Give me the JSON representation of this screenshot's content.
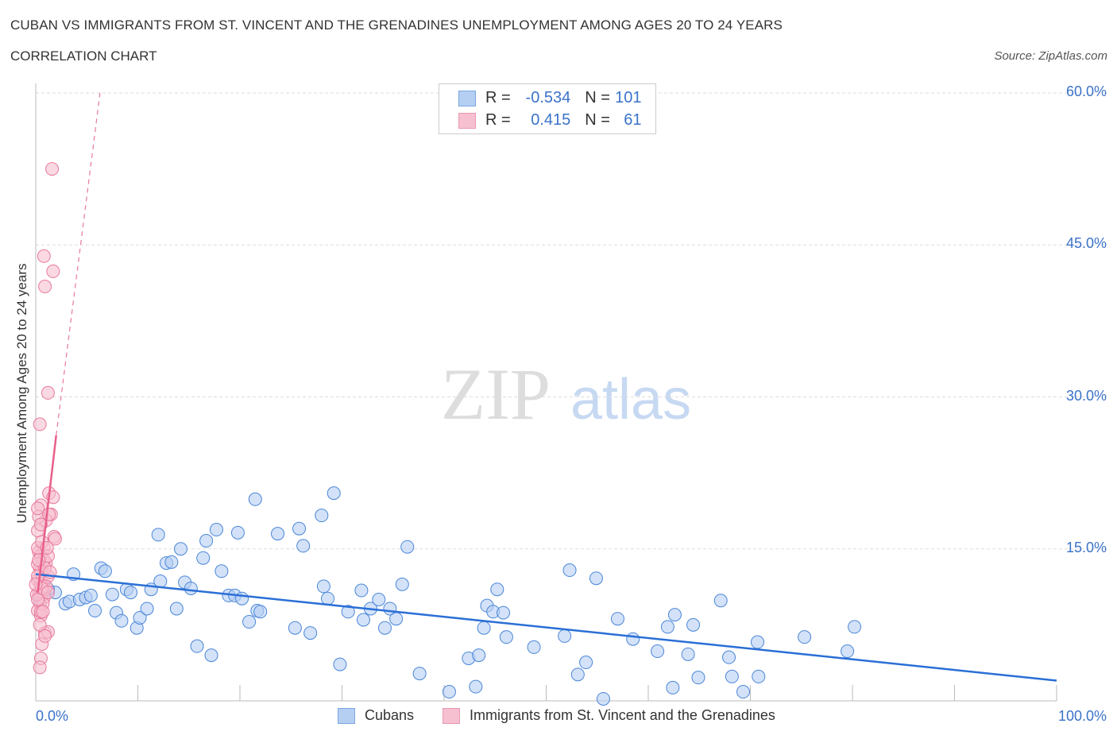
{
  "title": "CUBAN VS IMMIGRANTS FROM ST. VINCENT AND THE GRENADINES UNEMPLOYMENT AMONG AGES 20 TO 24 YEARS",
  "subtitle": "CORRELATION CHART",
  "source": "Source: ZipAtlas.com",
  "watermark": "ZIPatlas",
  "legend": {
    "rows": [
      {
        "r_label": "R =",
        "r": "-0.534",
        "n_label": "N =",
        "n": "101"
      },
      {
        "r_label": "R =",
        "r": "0.415",
        "n_label": "N =",
        "n": "61"
      }
    ]
  },
  "chart_data": {
    "type": "scatter",
    "xlabel": "",
    "ylabel": "Unemployment Among Ages 20 to 24 years",
    "xlim": [
      0,
      100
    ],
    "ylim": [
      0,
      60
    ],
    "x_ticks": [
      "0.0%",
      "100.0%"
    ],
    "y_ticks": [
      {
        "v": 15,
        "label": "15.0%"
      },
      {
        "v": 30,
        "label": "30.0%"
      },
      {
        "v": 45,
        "label": "45.0%"
      },
      {
        "v": 60,
        "label": "60.0%"
      }
    ],
    "grid": true,
    "legend_placement": "bottom",
    "series": [
      {
        "name": "Cubans",
        "color": "#4a86d8",
        "fill": "#b5cff3",
        "trend": [
          [
            0,
            12.5
          ],
          [
            100,
            2.0
          ]
        ],
        "points": [
          [
            3.7,
            12.5
          ],
          [
            2.9,
            9.6
          ],
          [
            3.3,
            9.8
          ],
          [
            1.9,
            10.7
          ],
          [
            1.2,
            11.0
          ],
          [
            0.5,
            10.5
          ],
          [
            4.3,
            10.0
          ],
          [
            4.9,
            10.2
          ],
          [
            5.4,
            10.4
          ],
          [
            5.8,
            8.9
          ],
          [
            6.4,
            13.1
          ],
          [
            6.8,
            12.8
          ],
          [
            7.5,
            10.5
          ],
          [
            7.9,
            8.7
          ],
          [
            8.4,
            7.9
          ],
          [
            8.9,
            11.0
          ],
          [
            9.3,
            10.7
          ],
          [
            9.9,
            7.2
          ],
          [
            10.2,
            8.2
          ],
          [
            10.9,
            9.1
          ],
          [
            11.3,
            11.0
          ],
          [
            12.0,
            16.4
          ],
          [
            12.2,
            11.8
          ],
          [
            12.8,
            13.6
          ],
          [
            13.3,
            13.7
          ],
          [
            13.8,
            9.1
          ],
          [
            14.2,
            15.0
          ],
          [
            14.6,
            11.7
          ],
          [
            15.2,
            11.1
          ],
          [
            15.8,
            5.4
          ],
          [
            16.4,
            14.1
          ],
          [
            16.7,
            15.8
          ],
          [
            17.2,
            4.5
          ],
          [
            17.7,
            16.9
          ],
          [
            18.2,
            12.8
          ],
          [
            18.9,
            10.4
          ],
          [
            19.5,
            10.4
          ],
          [
            19.8,
            16.6
          ],
          [
            20.2,
            10.1
          ],
          [
            20.9,
            7.8
          ],
          [
            21.5,
            19.9
          ],
          [
            21.7,
            8.9
          ],
          [
            22.0,
            8.8
          ],
          [
            23.7,
            16.5
          ],
          [
            25.4,
            7.2
          ],
          [
            25.8,
            17.0
          ],
          [
            26.2,
            15.3
          ],
          [
            26.9,
            6.7
          ],
          [
            28.0,
            18.3
          ],
          [
            28.2,
            11.3
          ],
          [
            28.6,
            10.1
          ],
          [
            29.2,
            20.5
          ],
          [
            29.8,
            3.6
          ],
          [
            30.6,
            8.8
          ],
          [
            31.9,
            10.9
          ],
          [
            32.1,
            8.0
          ],
          [
            32.8,
            9.1
          ],
          [
            33.6,
            10.0
          ],
          [
            34.2,
            7.2
          ],
          [
            34.7,
            9.1
          ],
          [
            35.3,
            8.1
          ],
          [
            35.9,
            11.5
          ],
          [
            36.4,
            15.2
          ],
          [
            37.6,
            2.7
          ],
          [
            40.5,
            0.9
          ],
          [
            42.4,
            4.2
          ],
          [
            43.1,
            1.4
          ],
          [
            43.4,
            4.5
          ],
          [
            43.9,
            7.2
          ],
          [
            44.2,
            9.4
          ],
          [
            44.8,
            8.8
          ],
          [
            45.2,
            11.0
          ],
          [
            45.8,
            8.7
          ],
          [
            46.1,
            6.3
          ],
          [
            48.8,
            5.3
          ],
          [
            51.8,
            6.4
          ],
          [
            52.3,
            12.9
          ],
          [
            53.1,
            2.6
          ],
          [
            53.9,
            3.8
          ],
          [
            54.9,
            12.1
          ],
          [
            55.6,
            0.2
          ],
          [
            57.0,
            8.1
          ],
          [
            58.5,
            6.1
          ],
          [
            60.9,
            4.9
          ],
          [
            61.9,
            7.3
          ],
          [
            62.4,
            1.3
          ],
          [
            62.6,
            8.5
          ],
          [
            63.9,
            4.6
          ],
          [
            64.4,
            7.5
          ],
          [
            64.9,
            2.3
          ],
          [
            67.1,
            9.9
          ],
          [
            67.9,
            4.3
          ],
          [
            68.2,
            2.4
          ],
          [
            69.3,
            0.9
          ],
          [
            70.7,
            5.8
          ],
          [
            70.8,
            2.4
          ],
          [
            75.3,
            6.3
          ],
          [
            79.5,
            4.9
          ],
          [
            80.2,
            7.3
          ],
          [
            0.4,
            10.0
          ],
          [
            0.8,
            10.7
          ]
        ]
      },
      {
        "name": "Immigrants from St. Vincent and the Grenadines",
        "color": "#e8799c",
        "fill": "#f7c0d0",
        "trend": [
          [
            0.2,
            10.7
          ],
          [
            2.0,
            26.2
          ]
        ],
        "trend_dashed": [
          [
            2.0,
            26.2
          ],
          [
            6.3,
            60
          ]
        ],
        "points": [
          [
            1.6,
            52.5
          ],
          [
            0.8,
            43.9
          ],
          [
            1.7,
            42.4
          ],
          [
            0.9,
            40.9
          ],
          [
            1.2,
            30.4
          ],
          [
            0.4,
            27.3
          ],
          [
            1.3,
            20.5
          ],
          [
            1.7,
            20.1
          ],
          [
            1.5,
            18.4
          ],
          [
            0.5,
            19.3
          ],
          [
            1.0,
            17.8
          ],
          [
            1.8,
            16.2
          ],
          [
            1.9,
            16.0
          ],
          [
            0.2,
            16.8
          ],
          [
            0.8,
            15.1
          ],
          [
            0.3,
            14.7
          ],
          [
            0.5,
            14.3
          ],
          [
            1.0,
            13.6
          ],
          [
            0.4,
            13.1
          ],
          [
            1.2,
            12.3
          ],
          [
            0.2,
            11.9
          ],
          [
            0.7,
            11.4
          ],
          [
            0.3,
            10.7
          ],
          [
            0.5,
            10.4
          ],
          [
            0.8,
            10.2
          ],
          [
            0.4,
            9.6
          ],
          [
            0.2,
            8.9
          ],
          [
            0.5,
            8.4
          ],
          [
            0.9,
            6.7
          ],
          [
            1.2,
            6.8
          ],
          [
            0.6,
            5.6
          ],
          [
            0.5,
            4.2
          ],
          [
            0.4,
            3.3
          ],
          [
            0.2,
            15.1
          ],
          [
            0.6,
            15.7
          ],
          [
            0.9,
            11.0
          ],
          [
            0.5,
            12.7
          ],
          [
            0.8,
            13.9
          ],
          [
            0.3,
            18.2
          ],
          [
            1.3,
            18.4
          ],
          [
            0.2,
            13.5
          ],
          [
            0.5,
            11.5
          ],
          [
            0.7,
            9.6
          ],
          [
            1.0,
            11.3
          ],
          [
            0.4,
            7.5
          ],
          [
            0.1,
            10.5
          ],
          [
            1.2,
            14.3
          ],
          [
            0.5,
            17.4
          ],
          [
            0.2,
            19.0
          ],
          [
            0.9,
            13.1
          ],
          [
            0.2,
            12.3
          ],
          [
            0.6,
            11.1
          ],
          [
            1.1,
            15.1
          ],
          [
            0.3,
            13.9
          ],
          [
            0.5,
            8.8
          ],
          [
            0.9,
            6.4
          ],
          [
            1.2,
            10.7
          ],
          [
            0.0,
            11.5
          ],
          [
            0.7,
            8.8
          ],
          [
            0.2,
            10.0
          ],
          [
            1.4,
            12.7
          ]
        ]
      }
    ]
  }
}
